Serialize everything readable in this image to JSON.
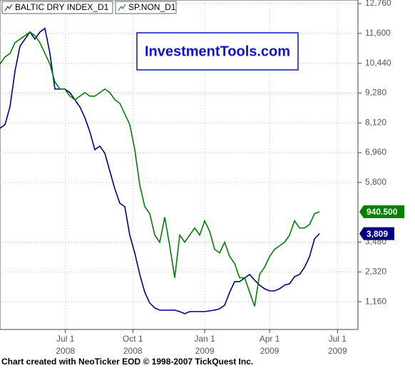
{
  "chart_data": {
    "type": "line",
    "footer": "Chart created with NeoTicker EOD © 1998-2007 TickQuest Inc.",
    "watermark": "InvestmentTools.com",
    "grid": true,
    "legend": "top-left",
    "xlim": [
      0,
      71.7
    ],
    "xticks": [
      {
        "value": 13.1,
        "label": "Jul 1",
        "sublabel": "2008"
      },
      {
        "value": 26.6,
        "label": "Oct 1",
        "sublabel": "2008"
      },
      {
        "value": 41,
        "label": "Jan 1",
        "sublabel": "2009"
      },
      {
        "value": 54,
        "label": "Apr 1",
        "sublabel": "2009"
      },
      {
        "value": 67.6,
        "label": "Jul 1",
        "sublabel": "2009"
      }
    ],
    "ylim": [
      80,
      12900
    ],
    "yticks": [
      {
        "value": 1160,
        "label": "1,160"
      },
      {
        "value": 2320,
        "label": "2,320"
      },
      {
        "value": 3480,
        "label": "3,480"
      },
      {
        "value": 5800,
        "label": "5,800"
      },
      {
        "value": 6960,
        "label": "6,960"
      },
      {
        "value": 8120,
        "label": "8,120"
      },
      {
        "value": 9280,
        "label": "9,280"
      },
      {
        "value": 10440,
        "label": "10,440"
      },
      {
        "value": 11600,
        "label": "11,600"
      },
      {
        "value": 12760,
        "label": "12,760"
      }
    ],
    "y2lim": [
      610,
      1535
    ],
    "series": [
      {
        "name": "BALTIC DRY INDEX_D1",
        "color": "#000080",
        "values": [
          7909,
          8048,
          8741,
          10129,
          11100,
          11378,
          11655,
          11378,
          11655,
          11794,
          10823,
          9435,
          9435,
          9435,
          9296,
          9019,
          8741,
          8325,
          7770,
          7076,
          7215,
          6938,
          6244,
          5550,
          4995,
          4856,
          3746,
          3053,
          2220,
          1526,
          1110,
          916,
          833,
          833,
          833,
          833,
          777,
          694,
          777,
          777,
          777,
          777,
          805,
          833,
          888,
          1027,
          1526,
          1943,
          1943,
          2081,
          2220,
          1998,
          1804,
          1665,
          1582,
          1582,
          1665,
          1804,
          1859,
          2137,
          2220,
          2498,
          2914,
          3608,
          3809
        ],
        "value_labels": [
          null,
          null,
          null,
          null,
          null,
          null,
          null,
          null,
          null,
          null,
          null,
          null,
          null,
          null,
          null,
          null,
          null,
          null,
          null,
          null,
          null,
          null,
          null,
          null,
          null,
          null,
          null,
          null,
          null,
          null,
          null,
          null,
          null,
          null,
          null,
          null,
          null,
          null,
          null,
          null,
          null,
          null,
          null,
          null,
          null,
          null,
          null,
          null,
          null,
          null,
          null,
          null,
          null,
          null,
          null,
          null,
          null,
          null,
          null,
          null,
          null,
          null,
          null,
          null,
          "3,809"
        ]
      },
      {
        "name": "SP.NON_D1",
        "color": "#008000",
        "axis": "y2",
        "values": [
          1355,
          1375,
          1385,
          1415,
          1425,
          1435,
          1445,
          1435,
          1415,
          1385,
          1355,
          1305,
          1285,
          1285,
          1265,
          1255,
          1265,
          1275,
          1265,
          1265,
          1275,
          1285,
          1275,
          1255,
          1245,
          1215,
          1185,
          1115,
          1015,
          955,
          935,
          875,
          855,
          925,
          845,
          755,
          875,
          855,
          875,
          895,
          875,
          915,
          885,
          835,
          825,
          855,
          815,
          795,
          755,
          755,
          715,
          675,
          765,
          785,
          815,
          835,
          845,
          855,
          875,
          915,
          895,
          895,
          905,
          935,
          940.5
        ],
        "value_labels": [
          null,
          null,
          null,
          null,
          null,
          null,
          null,
          null,
          null,
          null,
          null,
          null,
          null,
          null,
          null,
          null,
          null,
          null,
          null,
          null,
          null,
          null,
          null,
          null,
          null,
          null,
          null,
          null,
          null,
          null,
          null,
          null,
          null,
          null,
          null,
          null,
          null,
          null,
          null,
          null,
          null,
          null,
          null,
          null,
          null,
          null,
          null,
          null,
          null,
          null,
          null,
          null,
          null,
          null,
          null,
          null,
          null,
          null,
          null,
          null,
          null,
          null,
          null,
          null,
          "940.500"
        ]
      }
    ]
  }
}
